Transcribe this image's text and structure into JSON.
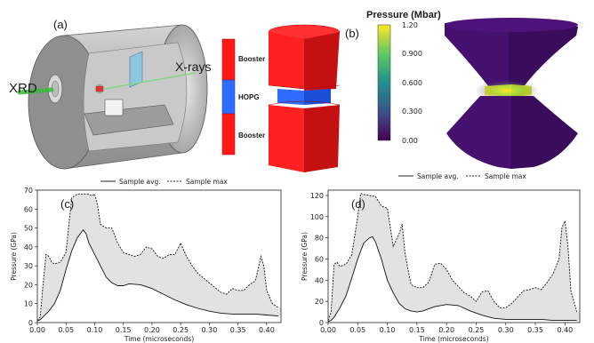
{
  "panels": {
    "a": {
      "label": "(a)",
      "xrd_label": "XRD",
      "xrays_label": "X-rays"
    },
    "target": {
      "booster_top": "Booster",
      "hopg": "HOPG",
      "booster_bottom": "Booster"
    },
    "b": {
      "label": "(b)",
      "colorbar_title": "Pressure (Mbar)",
      "colorbar_ticks": [
        "1.20",
        "0.900",
        "0.600",
        "0.300",
        "0.00"
      ]
    }
  },
  "legend": {
    "avg": "Sample avg.",
    "max": "Sample max"
  },
  "chart_data": [
    {
      "panel": "(c)",
      "type": "area",
      "ylabel": "Pressure (GPa)",
      "xlabel": "Time (microseconds)",
      "xlim": [
        0,
        0.425
      ],
      "ylim": [
        0,
        70
      ],
      "xticks": [
        "0.00",
        "0.05",
        "0.10",
        "0.15",
        "0.20",
        "0.25",
        "0.30",
        "0.35",
        "0.40"
      ],
      "yticks": [
        "0",
        "10",
        "20",
        "30",
        "40",
        "50",
        "60",
        "70"
      ],
      "series": [
        {
          "name": "Sample avg.",
          "style": "solid",
          "x": [
            0,
            0.005,
            0.01,
            0.02,
            0.03,
            0.04,
            0.05,
            0.06,
            0.07,
            0.08,
            0.085,
            0.09,
            0.1,
            0.11,
            0.12,
            0.13,
            0.14,
            0.15,
            0.16,
            0.18,
            0.2,
            0.22,
            0.24,
            0.26,
            0.28,
            0.3,
            0.32,
            0.34,
            0.36,
            0.38,
            0.4,
            0.42
          ],
          "y": [
            1,
            1.5,
            3,
            6,
            10,
            17,
            28,
            38,
            45,
            49,
            47,
            42,
            36,
            30,
            24,
            21,
            19.5,
            19.5,
            20.5,
            20,
            18,
            15,
            12,
            9.5,
            7.5,
            6,
            5,
            4.5,
            4.5,
            4.5,
            4,
            3.5
          ]
        },
        {
          "name": "Sample max",
          "style": "dashed",
          "x": [
            0,
            0.005,
            0.01,
            0.015,
            0.02,
            0.025,
            0.03,
            0.04,
            0.05,
            0.055,
            0.06,
            0.07,
            0.08,
            0.09,
            0.095,
            0.1,
            0.105,
            0.11,
            0.12,
            0.13,
            0.14,
            0.15,
            0.16,
            0.17,
            0.18,
            0.19,
            0.2,
            0.21,
            0.22,
            0.23,
            0.24,
            0.25,
            0.26,
            0.27,
            0.28,
            0.3,
            0.32,
            0.33,
            0.34,
            0.35,
            0.36,
            0.37,
            0.38,
            0.385,
            0.39,
            0.395,
            0.4,
            0.41,
            0.42
          ],
          "y": [
            1,
            3,
            20,
            36,
            35,
            32,
            31,
            32,
            37,
            52,
            66,
            68,
            68,
            68,
            67,
            68,
            62,
            52,
            50,
            50,
            42,
            37,
            36,
            35,
            36,
            40,
            39,
            35,
            34,
            36,
            36,
            42,
            35,
            30,
            26,
            21,
            16,
            15,
            18,
            17,
            17,
            20,
            22,
            28,
            35,
            30,
            17,
            10,
            8
          ]
        }
      ]
    },
    {
      "panel": "(d)",
      "type": "area",
      "ylabel": "Pressure (GPa)",
      "xlabel": "Time (microseconds)",
      "xlim": [
        0,
        0.425
      ],
      "ylim": [
        0,
        125
      ],
      "xticks": [
        "0.00",
        "0.05",
        "0.10",
        "0.15",
        "0.20",
        "0.25",
        "0.30",
        "0.35",
        "0.40"
      ],
      "yticks": [
        "0",
        "20",
        "40",
        "60",
        "80",
        "100",
        "120"
      ],
      "series": [
        {
          "name": "Sample avg.",
          "style": "solid",
          "x": [
            0,
            0.005,
            0.01,
            0.02,
            0.03,
            0.04,
            0.05,
            0.06,
            0.07,
            0.075,
            0.08,
            0.09,
            0.1,
            0.11,
            0.12,
            0.13,
            0.14,
            0.15,
            0.16,
            0.18,
            0.2,
            0.22,
            0.24,
            0.26,
            0.28,
            0.3,
            0.32,
            0.34,
            0.36,
            0.38,
            0.4,
            0.42
          ],
          "y": [
            1,
            2,
            5,
            14,
            25,
            42,
            60,
            75,
            80,
            81,
            76,
            60,
            40,
            28,
            18,
            13,
            11,
            10,
            11,
            15,
            17,
            16,
            11,
            7,
            4,
            3,
            3,
            3,
            3,
            2,
            2,
            2
          ]
        },
        {
          "name": "Sample max",
          "style": "dashed",
          "x": [
            0,
            0.005,
            0.01,
            0.015,
            0.02,
            0.03,
            0.04,
            0.05,
            0.055,
            0.06,
            0.07,
            0.08,
            0.09,
            0.1,
            0.105,
            0.11,
            0.12,
            0.125,
            0.13,
            0.135,
            0.14,
            0.15,
            0.16,
            0.17,
            0.18,
            0.19,
            0.2,
            0.21,
            0.22,
            0.23,
            0.24,
            0.25,
            0.26,
            0.27,
            0.28,
            0.29,
            0.3,
            0.31,
            0.32,
            0.33,
            0.34,
            0.35,
            0.36,
            0.37,
            0.38,
            0.39,
            0.395,
            0.4,
            0.405,
            0.41,
            0.42
          ],
          "y": [
            2,
            10,
            55,
            57,
            53,
            55,
            64,
            100,
            122,
            121,
            120,
            119,
            110,
            108,
            90,
            72,
            84,
            93,
            65,
            50,
            36,
            33,
            33,
            38,
            55,
            56,
            50,
            40,
            34,
            28,
            25,
            20,
            29,
            30,
            20,
            14,
            14,
            18,
            24,
            30,
            31,
            33,
            31,
            38,
            46,
            60,
            90,
            96,
            72,
            30,
            10
          ]
        }
      ]
    }
  ]
}
